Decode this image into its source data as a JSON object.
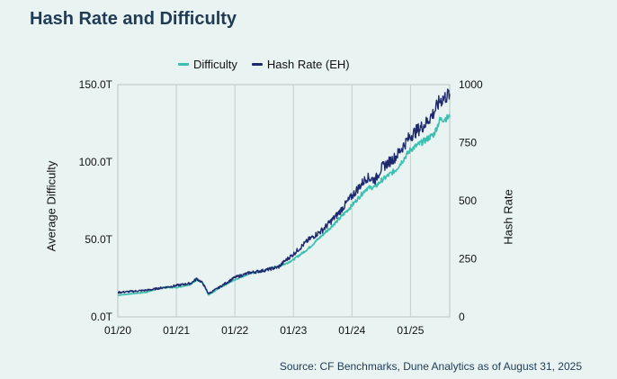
{
  "title": "Hash Rate and Difficulty",
  "source": "Source: CF Benchmarks, Dune Analytics as of August 31, 2025",
  "chart_data": {
    "type": "line",
    "ylabel_left": "Average Difficulty",
    "ylabel_right": "Hash Rate",
    "x_ticks": [
      "01/20",
      "01/21",
      "01/22",
      "01/23",
      "01/24",
      "01/25"
    ],
    "y_left_ticks": [
      "0.0T",
      "50.0T",
      "100.0T",
      "150.0T"
    ],
    "y_left_range": [
      0,
      150
    ],
    "y_right_ticks": [
      "0",
      "250",
      "500",
      "750",
      "1000"
    ],
    "y_right_range": [
      0,
      1000
    ],
    "x_range": [
      2020.0,
      2025.67
    ],
    "grid": "vertical",
    "legend_position": "top-center",
    "series": [
      {
        "name": "Difficulty",
        "color": "#3cbfae",
        "axis": "left",
        "x": [
          2020.0,
          2020.25,
          2020.5,
          2020.75,
          2021.0,
          2021.25,
          2021.35,
          2021.45,
          2021.55,
          2021.75,
          2022.0,
          2022.25,
          2022.5,
          2022.75,
          2022.85,
          2023.0,
          2023.25,
          2023.5,
          2023.75,
          2024.0,
          2024.25,
          2024.4,
          2024.5,
          2024.75,
          2025.0,
          2025.25,
          2025.4,
          2025.5,
          2025.67
        ],
        "values": [
          14,
          15,
          16,
          19,
          19,
          21,
          24,
          22,
          14,
          19,
          24,
          28,
          30,
          33,
          34,
          37,
          44,
          53,
          62,
          72,
          83,
          84,
          88,
          95,
          108,
          114,
          118,
          127,
          129
        ]
      },
      {
        "name": "Hash Rate (EH)",
        "color": "#1f2a6e",
        "axis": "right",
        "x": [
          2020.0,
          2020.25,
          2020.5,
          2020.75,
          2021.0,
          2021.25,
          2021.35,
          2021.45,
          2021.55,
          2021.75,
          2022.0,
          2022.25,
          2022.5,
          2022.75,
          2022.85,
          2023.0,
          2023.25,
          2023.5,
          2023.75,
          2024.0,
          2024.25,
          2024.4,
          2024.5,
          2024.75,
          2025.0,
          2025.25,
          2025.4,
          2025.5,
          2025.67
        ],
        "values": [
          105,
          110,
          115,
          125,
          135,
          145,
          165,
          145,
          100,
          130,
          170,
          190,
          200,
          215,
          240,
          270,
          330,
          375,
          440,
          520,
          600,
          590,
          640,
          690,
          780,
          830,
          880,
          930,
          960
        ]
      }
    ]
  }
}
